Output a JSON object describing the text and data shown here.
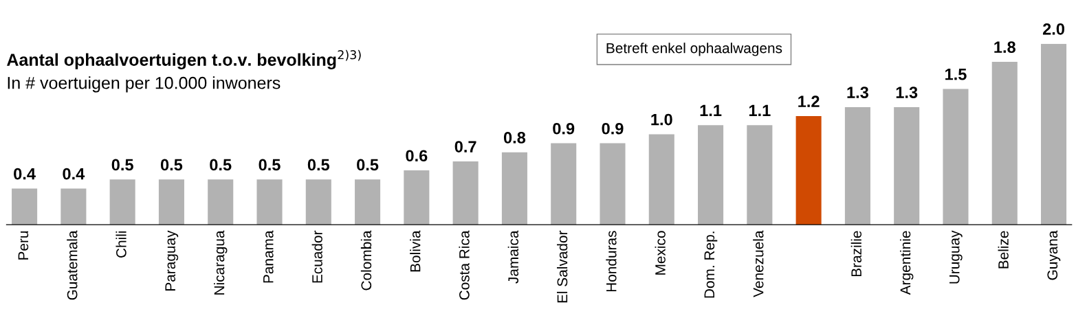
{
  "chart_data": {
    "type": "bar",
    "title": "Aantal ophaalvoertuigen t.o.v. bevolking$^{2)3)}$",
    "subtitle": "In # voertuigen per 10.000 inwoners",
    "categories": [
      "Peru",
      "Guatemala",
      "Chili",
      "Paraguay",
      "Nicaragua",
      "Panama",
      "Ecuador",
      "Colombia",
      "Bolivia",
      "Costa Rica",
      "Jamaica",
      "El Salvador",
      "Honduras",
      "Mexico",
      "Dom. Rep.",
      "Venezuela",
      null,
      "Brazilie",
      "Argentinie",
      "Uruguay",
      "Belize",
      "Guyana"
    ],
    "values": [
      0.4,
      0.4,
      0.5,
      0.5,
      0.5,
      0.5,
      0.5,
      0.5,
      0.6,
      0.7,
      0.8,
      0.9,
      0.9,
      1.0,
      1.1,
      1.1,
      1.2,
      1.3,
      1.3,
      1.5,
      1.8,
      2.0
    ],
    "colors": [
      "#b2b2b2",
      "#b2b2b2",
      "#b2b2b2",
      "#b2b2b2",
      "#b2b2b2",
      "#b2b2b2",
      "#b2b2b2",
      "#b2b2b2",
      "#b2b2b2",
      "#b2b2b2",
      "#b2b2b2",
      "#b2b2b2",
      "#b2b2b2",
      "#b2b2b2",
      "#b2b2b2",
      "#b2b2b2",
      "#d04a02",
      "#b2b2b2",
      "#b2b2b2",
      "#b2b2b2",
      "#b2b2b2",
      "#b2b2b2"
    ],
    "value_labels": [
      "0.4",
      "0.4",
      "0.5",
      "0.5",
      "0.5",
      "0.5",
      "0.5",
      "0.5",
      "0.6",
      "0.7",
      "0.8",
      "0.9",
      "0.9",
      "1.0",
      "1.1",
      "1.1",
      "1.2",
      "1.3",
      "1.3",
      "1.5",
      "1.8",
      "2.0"
    ],
    "annotations": [
      "Betreft enkel ophaalwagens"
    ]
  }
}
